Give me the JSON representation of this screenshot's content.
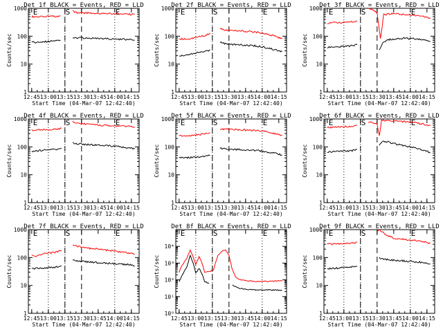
{
  "figure": {
    "background": "#ffffff",
    "axis_color": "#000000",
    "events_color": "#000000",
    "lld_color": "#ff0000",
    "xtick_labels": [
      "12:45",
      "13:00",
      "13:15",
      "13:30",
      "13:45",
      "14:00",
      "14:15"
    ],
    "ylabel": "Counts/sec",
    "xlabel": "Start Time (04-Mar-07 12:42:40)"
  },
  "chart_data": [
    {
      "type": "line",
      "title": "Det 1f BLACK = Events, RED = LLD",
      "markers": [
        "E",
        "S",
        "E"
      ],
      "xlabel": "Start Time (04-Mar-07 12:42:40)",
      "ylabel": "Counts/sec",
      "x_range": [
        "12:45",
        "14:20"
      ],
      "y_range": [
        1,
        1000
      ],
      "y_scale": "log",
      "y_ticks": [
        "1",
        "10",
        "100",
        "1000"
      ],
      "series": [
        {
          "x": [
            "12:45",
            "12:55",
            "13:05",
            "13:10",
            "13:11"
          ],
          "y": [
            500,
            500,
            520,
            520,
            540
          ]
        },
        {
          "x": [
            "13:22",
            "13:26",
            "13:35",
            "13:45",
            "13:55",
            "14:05",
            "14:15",
            "14:18"
          ],
          "y": [
            800,
            700,
            680,
            650,
            640,
            640,
            600,
            600
          ]
        },
        {
          "x": [
            "12:45",
            "12:55",
            "13:05",
            "13:10",
            "13:11"
          ],
          "y": [
            60,
            62,
            68,
            70,
            72
          ]
        },
        {
          "x": [
            "13:22",
            "13:26",
            "13:35",
            "13:45",
            "13:55",
            "14:05",
            "14:15",
            "14:18"
          ],
          "y": [
            90,
            88,
            86,
            82,
            80,
            78,
            75,
            72
          ]
        }
      ]
    },
    {
      "type": "line",
      "title": "Det 2f BLACK = Events, RED = LLD",
      "markers": [
        "E",
        "S",
        "E"
      ],
      "xlabel": "Start Time (04-Mar-07 12:42:40)",
      "ylabel": "Counts/sec",
      "x_range": [
        "12:45",
        "14:20"
      ],
      "y_range": [
        1,
        1000
      ],
      "y_scale": "log",
      "y_ticks": [
        "1",
        "10",
        "100",
        "1000"
      ],
      "series": [
        {
          "x": [
            "12:45",
            "12:55",
            "13:05",
            "13:10",
            "13:13"
          ],
          "y": [
            80,
            80,
            100,
            110,
            130
          ]
        },
        {
          "x": [
            "13:22",
            "13:26",
            "13:35",
            "13:45",
            "13:55",
            "14:05",
            "14:15",
            "14:18"
          ],
          "y": [
            190,
            170,
            160,
            150,
            140,
            120,
            90,
            80
          ]
        },
        {
          "x": [
            "12:45",
            "12:55",
            "13:05",
            "13:10",
            "13:13"
          ],
          "y": [
            20,
            22,
            28,
            30,
            32
          ]
        },
        {
          "x": [
            "13:22",
            "13:26",
            "13:35",
            "13:45",
            "13:55",
            "14:05",
            "14:15",
            "14:18"
          ],
          "y": [
            60,
            55,
            50,
            48,
            45,
            38,
            30,
            28
          ]
        }
      ]
    },
    {
      "type": "line",
      "title": "Det 3f BLACK = Events, RED = LLD",
      "markers": [
        "E",
        "S",
        "E"
      ],
      "xlabel": "Start Time (04-Mar-07 12:42:40)",
      "ylabel": "Counts/sec",
      "x_range": [
        "12:45",
        "14:20"
      ],
      "y_range": [
        1,
        1000
      ],
      "y_scale": "log",
      "y_ticks": [
        "1",
        "10",
        "100",
        "1000"
      ],
      "series": [
        {
          "x": [
            "12:45",
            "12:55",
            "13:05",
            "13:10",
            "13:12"
          ],
          "y": [
            300,
            310,
            320,
            330,
            350
          ]
        },
        {
          "x": [
            "13:22",
            "13:26",
            "13:30",
            "13:33",
            "13:36",
            "13:45",
            "13:55",
            "14:05",
            "14:15",
            "14:18"
          ],
          "y": [
            1000,
            900,
            700,
            80,
            600,
            650,
            600,
            550,
            480,
            420
          ]
        },
        {
          "x": [
            "12:45",
            "12:55",
            "13:05",
            "13:10",
            "13:12"
          ],
          "y": [
            40,
            42,
            45,
            48,
            50
          ]
        },
        {
          "x": [
            "13:32",
            "13:35",
            "13:40",
            "13:45",
            "13:55",
            "14:05",
            "14:15",
            "14:18"
          ],
          "y": [
            30,
            60,
            75,
            80,
            85,
            80,
            70,
            65
          ]
        }
      ]
    },
    {
      "type": "line",
      "title": "Det 4f BLACK = Events, RED = LLD",
      "markers": [
        "E",
        "S",
        "E"
      ],
      "xlabel": "Start Time (04-Mar-07 12:42:40)",
      "ylabel": "Counts/sec",
      "x_range": [
        "12:45",
        "14:20"
      ],
      "y_range": [
        1,
        1000
      ],
      "y_scale": "log",
      "y_ticks": [
        "1",
        "10",
        "100",
        "1000"
      ],
      "series": [
        {
          "x": [
            "12:45",
            "12:55",
            "13:05",
            "13:10",
            "13:12"
          ],
          "y": [
            400,
            410,
            420,
            440,
            460
          ]
        },
        {
          "x": [
            "13:22",
            "13:26",
            "13:35",
            "13:45",
            "13:55",
            "14:05",
            "14:15",
            "14:18"
          ],
          "y": [
            800,
            700,
            650,
            600,
            580,
            560,
            540,
            520
          ]
        },
        {
          "x": [
            "12:45",
            "12:55",
            "13:05",
            "13:10",
            "13:12"
          ],
          "y": [
            70,
            75,
            80,
            85,
            90
          ]
        },
        {
          "x": [
            "13:22",
            "13:26",
            "13:35",
            "13:45",
            "13:55",
            "14:05",
            "14:15",
            "14:18"
          ],
          "y": [
            140,
            130,
            120,
            115,
            110,
            100,
            90,
            85
          ]
        }
      ]
    },
    {
      "type": "line",
      "title": "Det 5f BLACK = Events, RED = LLD",
      "markers": [
        "E",
        "S",
        "E"
      ],
      "xlabel": "Start Time (04-Mar-07 12:42:40)",
      "ylabel": "Counts/sec",
      "x_range": [
        "12:45",
        "14:20"
      ],
      "y_range": [
        1,
        1000
      ],
      "y_scale": "log",
      "y_ticks": [
        "1",
        "10",
        "100",
        "1000"
      ],
      "series": [
        {
          "x": [
            "12:45",
            "12:55",
            "13:05",
            "13:10",
            "13:13"
          ],
          "y": [
            250,
            260,
            280,
            300,
            320
          ]
        },
        {
          "x": [
            "13:22",
            "13:26",
            "13:35",
            "13:45",
            "13:55",
            "14:05",
            "14:15",
            "14:18"
          ],
          "y": [
            450,
            430,
            420,
            400,
            390,
            340,
            280,
            260
          ]
        },
        {
          "x": [
            "12:45",
            "12:55",
            "13:05",
            "13:10",
            "13:13"
          ],
          "y": [
            40,
            42,
            45,
            48,
            50
          ]
        },
        {
          "x": [
            "13:22",
            "13:26",
            "13:35",
            "13:45",
            "13:55",
            "14:05",
            "14:15",
            "14:18"
          ],
          "y": [
            90,
            85,
            80,
            78,
            75,
            65,
            55,
            50
          ]
        }
      ]
    },
    {
      "type": "line",
      "title": "Det 6f BLACK = Events, RED = LLD",
      "markers": [
        "E",
        "S",
        "E"
      ],
      "xlabel": "Start Time (04-Mar-07 12:42:40)",
      "ylabel": "Counts/sec",
      "x_range": [
        "12:45",
        "14:20"
      ],
      "y_range": [
        1,
        1000
      ],
      "y_scale": "log",
      "y_ticks": [
        "1",
        "10",
        "100",
        "1000"
      ],
      "series": [
        {
          "x": [
            "12:45",
            "12:55",
            "13:05",
            "13:10",
            "13:12"
          ],
          "y": [
            500,
            520,
            540,
            560,
            600
          ]
        },
        {
          "x": [
            "13:22",
            "13:26",
            "13:30",
            "13:32",
            "13:34",
            "13:40",
            "13:45",
            "13:55",
            "14:05",
            "14:15",
            "14:18"
          ],
          "y": [
            800,
            750,
            650,
            250,
            900,
            880,
            850,
            800,
            720,
            620,
            580
          ]
        },
        {
          "x": [
            "12:45",
            "12:55",
            "13:05",
            "13:10",
            "13:12"
          ],
          "y": [
            65,
            68,
            72,
            75,
            80
          ]
        },
        {
          "x": [
            "13:32",
            "13:35",
            "13:40",
            "13:45",
            "13:55",
            "14:05",
            "14:15",
            "14:18"
          ],
          "y": [
            120,
            160,
            150,
            130,
            110,
            90,
            70,
            60
          ]
        }
      ]
    },
    {
      "type": "line",
      "title": "Det 7f BLACK = Events, RED = LLD",
      "markers": [
        "E",
        "S",
        "E"
      ],
      "xlabel": "Start Time (04-Mar-07 12:42:40)",
      "ylabel": "Counts/sec",
      "x_range": [
        "12:45",
        "14:20"
      ],
      "y_range": [
        1,
        1000
      ],
      "y_scale": "log",
      "y_ticks": [
        "1",
        "10",
        "100",
        "1000"
      ],
      "series": [
        {
          "x": [
            "12:45",
            "12:50",
            "12:55",
            "13:05",
            "13:10",
            "13:12"
          ],
          "y": [
            120,
            110,
            140,
            150,
            170,
            180
          ]
        },
        {
          "x": [
            "13:22",
            "13:26",
            "13:35",
            "13:45",
            "13:55",
            "14:05",
            "14:15",
            "14:18"
          ],
          "y": [
            300,
            250,
            220,
            200,
            180,
            160,
            140,
            130
          ]
        },
        {
          "x": [
            "12:45",
            "12:55",
            "13:05",
            "13:10",
            "13:12"
          ],
          "y": [
            40,
            42,
            45,
            48,
            50
          ]
        },
        {
          "x": [
            "13:22",
            "13:26",
            "13:35",
            "13:45",
            "13:55",
            "14:05",
            "14:15",
            "14:18"
          ],
          "y": [
            80,
            75,
            70,
            65,
            62,
            58,
            55,
            50
          ]
        }
      ]
    },
    {
      "type": "line",
      "title": "Det 8f BLACK = Events, RED = LLD",
      "markers": [
        "E",
        "S",
        "E"
      ],
      "xlabel": "Start Time (04-Mar-07 12:42:40)",
      "ylabel": "Counts/sec",
      "x_range": [
        "12:45",
        "14:20"
      ],
      "y_range": [
        1,
        100000
      ],
      "y_scale": "log",
      "y_ticks": [
        "10⁰",
        "10¹",
        "10²",
        "10³",
        "10⁴"
      ],
      "series": [
        {
          "x": [
            "12:45",
            "12:48",
            "12:52",
            "12:55",
            "12:58",
            "13:00",
            "13:03",
            "13:06",
            "13:08",
            "13:12",
            "13:16",
            "13:20",
            "13:24",
            "13:27",
            "13:30",
            "13:33",
            "13:36",
            "13:40",
            "13:45",
            "13:55",
            "14:05",
            "14:15",
            "14:18"
          ],
          "y": [
            300,
            800,
            2000,
            6000,
            2000,
            800,
            2500,
            900,
            300,
            300,
            400,
            3000,
            5000,
            6000,
            3000,
            400,
            150,
            100,
            90,
            80,
            80,
            90,
            85
          ]
        },
        {
          "x": [
            "12:45",
            "12:48",
            "12:52",
            "12:55",
            "12:58",
            "13:00",
            "13:03",
            "13:06",
            "13:08",
            "13:12"
          ],
          "y": [
            80,
            200,
            600,
            3000,
            800,
            250,
            500,
            200,
            80,
            60
          ]
        },
        {
          "x": [
            "13:33",
            "13:36",
            "13:40",
            "13:45",
            "13:55",
            "14:05",
            "14:15",
            "14:18"
          ],
          "y": [
            50,
            40,
            30,
            28,
            25,
            25,
            24,
            24
          ]
        }
      ]
    },
    {
      "type": "line",
      "title": "Det 9f BLACK = Events, RED = LLD",
      "markers": [
        "E",
        "S",
        "E"
      ],
      "xlabel": "Start Time (04-Mar-07 12:42:40)",
      "ylabel": "Counts/sec",
      "x_range": [
        "12:45",
        "14:20"
      ],
      "y_range": [
        1,
        1000
      ],
      "y_scale": "log",
      "y_ticks": [
        "1",
        "10",
        "100",
        "1000"
      ],
      "series": [
        {
          "x": [
            "12:45",
            "12:55",
            "13:05",
            "13:10",
            "13:12"
          ],
          "y": [
            300,
            310,
            320,
            340,
            360
          ]
        },
        {
          "x": [
            "13:30",
            "13:32",
            "13:35",
            "13:40",
            "13:45",
            "13:55",
            "14:05",
            "14:15",
            "14:18"
          ],
          "y": [
            900,
            1000,
            800,
            600,
            500,
            450,
            400,
            350,
            320
          ]
        },
        {
          "x": [
            "12:45",
            "12:55",
            "13:05",
            "13:10",
            "13:12"
          ],
          "y": [
            40,
            42,
            45,
            48,
            50
          ]
        },
        {
          "x": [
            "13:32",
            "13:35",
            "13:40",
            "13:45",
            "13:55",
            "14:05",
            "14:15",
            "14:18"
          ],
          "y": [
            100,
            90,
            85,
            80,
            75,
            70,
            65,
            60
          ]
        }
      ]
    }
  ]
}
